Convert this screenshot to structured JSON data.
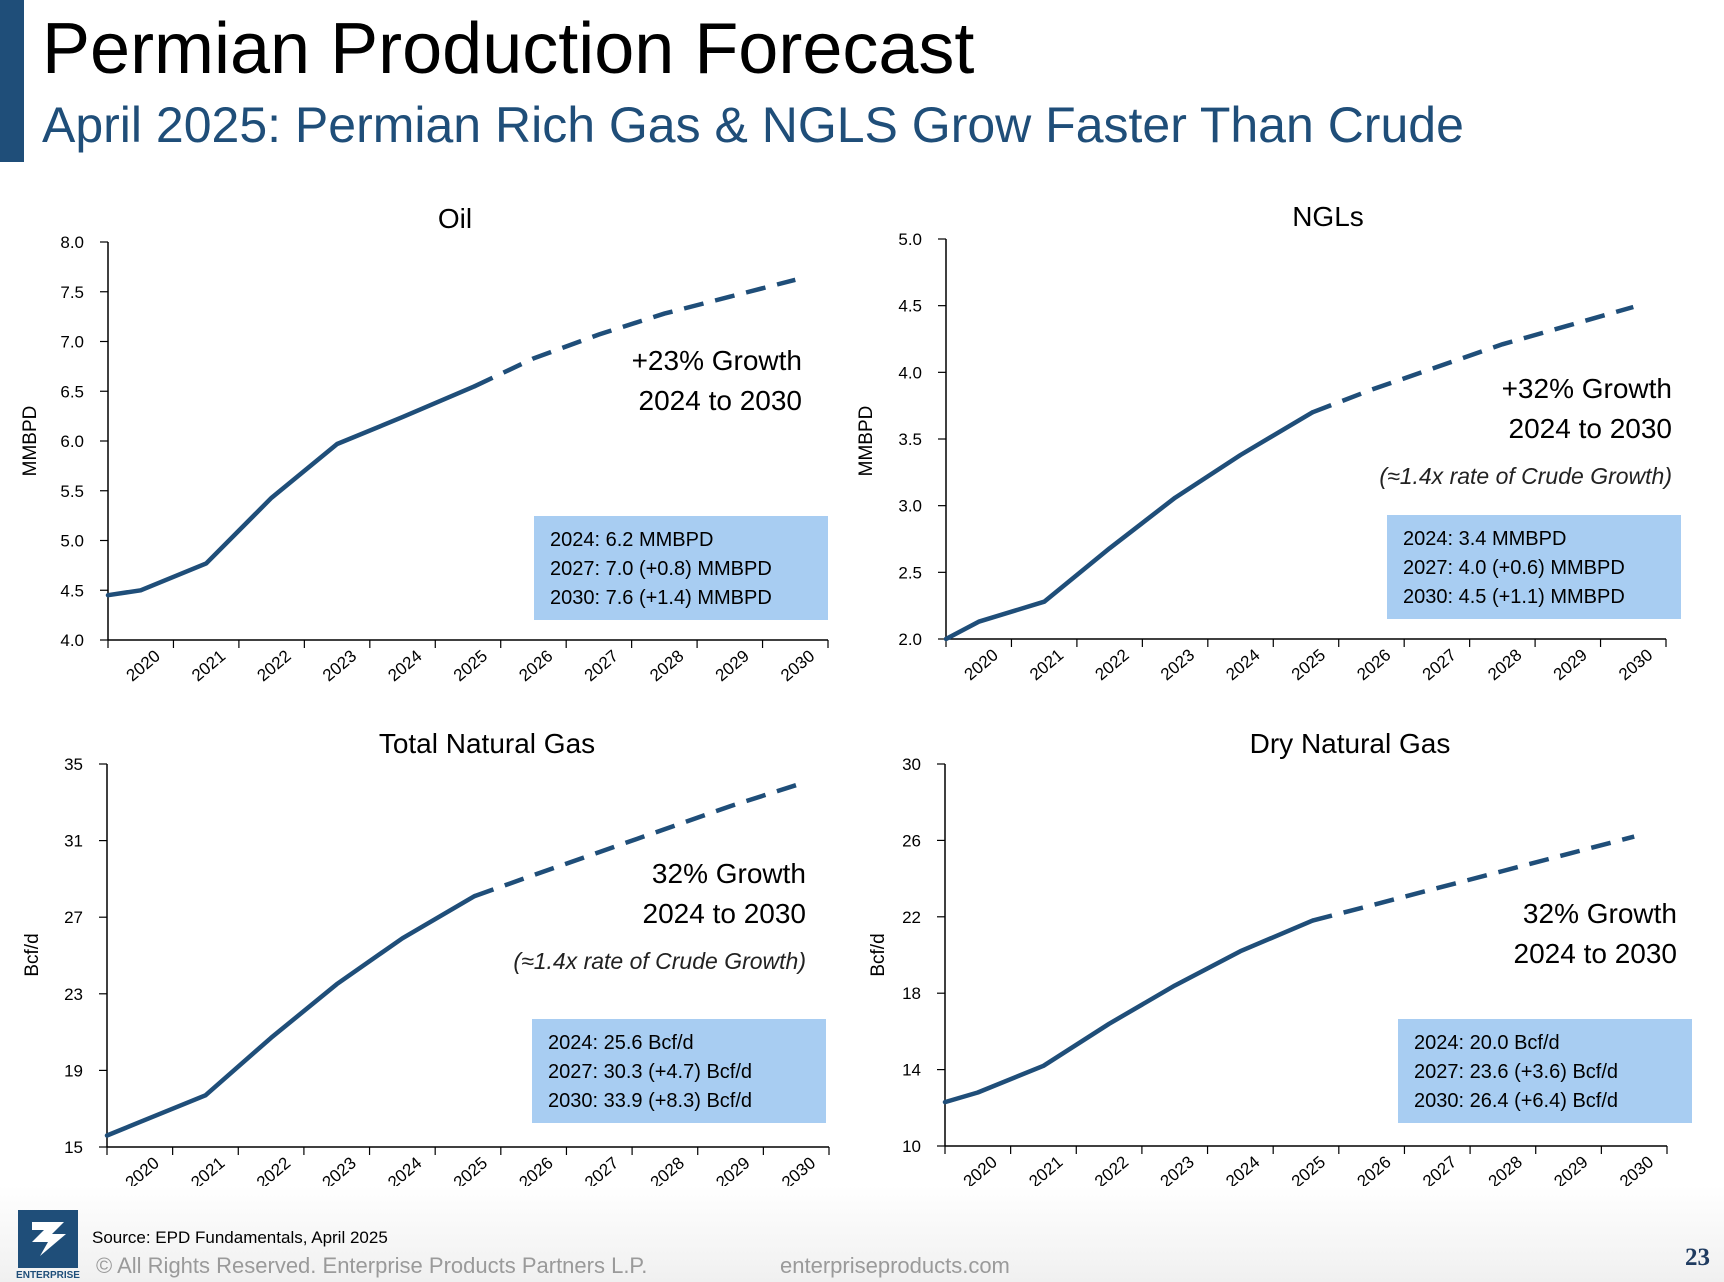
{
  "header": {
    "title": "Permian Production Forecast",
    "subtitle": "April 2025: Permian Rich Gas & NGLS Grow Faster Than Crude"
  },
  "colors": {
    "accent": "#1f4e79",
    "line": "#1f4e79",
    "box": "#a8cdf2"
  },
  "chart_data": [
    {
      "type": "line",
      "title": "Oil",
      "ylabel": "MMBPD",
      "ylim": [
        4.0,
        8.0
      ],
      "yticks": [
        "8.0",
        "7.5",
        "7.0",
        "6.5",
        "6.0",
        "5.5",
        "5.0",
        "4.5",
        "4.0"
      ],
      "categories": [
        "2020",
        "2021",
        "2022",
        "2023",
        "2024",
        "2025",
        "2026",
        "2027",
        "2028",
        "2029",
        "2030"
      ],
      "series": [
        {
          "style": "solid-actual-dashed-forecast",
          "forecast_start_x": 5.6,
          "points": [
            [
              0,
              4.45
            ],
            [
              0.5,
              4.5
            ],
            [
              1.5,
              4.77
            ],
            [
              2.5,
              5.43
            ],
            [
              3.5,
              5.97
            ],
            [
              4.5,
              6.24
            ],
            [
              5.6,
              6.55
            ],
            [
              6.5,
              6.83
            ],
            [
              7.5,
              7.07
            ],
            [
              8.5,
              7.28
            ],
            [
              9.5,
              7.45
            ],
            [
              10.5,
              7.62
            ]
          ]
        }
      ],
      "annotation": {
        "lines": [
          "+23% Growth",
          "2024 to 2030"
        ]
      },
      "box": {
        "lines": [
          "2024: 6.2 MMBPD",
          "2027: 7.0 (+0.8) MMBPD",
          "2030: 7.6 (+1.4) MMBPD"
        ]
      }
    },
    {
      "type": "line",
      "title": "NGLs",
      "ylabel": "MMBPD",
      "ylim": [
        2.0,
        5.0
      ],
      "yticks": [
        "5.0",
        "4.5",
        "4.0",
        "3.5",
        "3.0",
        "2.5",
        "2.0"
      ],
      "categories": [
        "2020",
        "2021",
        "2022",
        "2023",
        "2024",
        "2025",
        "2026",
        "2027",
        "2028",
        "2029",
        "2030"
      ],
      "series": [
        {
          "style": "solid-actual-dashed-forecast",
          "forecast_start_x": 5.6,
          "points": [
            [
              0,
              2.0
            ],
            [
              0.5,
              2.13
            ],
            [
              1.5,
              2.28
            ],
            [
              2.5,
              2.68
            ],
            [
              3.5,
              3.06
            ],
            [
              4.5,
              3.38
            ],
            [
              5.6,
              3.7
            ],
            [
              6.5,
              3.87
            ],
            [
              7.5,
              4.04
            ],
            [
              8.5,
              4.21
            ],
            [
              9.5,
              4.35
            ],
            [
              10.5,
              4.49
            ]
          ]
        }
      ],
      "annotation": {
        "lines": [
          "+32% Growth",
          "2024 to 2030"
        ],
        "note": "(≈1.4x rate of Crude Growth)"
      },
      "box": {
        "lines": [
          "2024: 3.4 MMBPD",
          "2027: 4.0 (+0.6) MMBPD",
          "2030: 4.5 (+1.1) MMBPD"
        ]
      }
    },
    {
      "type": "line",
      "title": "Total Natural Gas",
      "ylabel": "Bcf/d",
      "ylim": [
        15,
        35
      ],
      "yticks": [
        "35",
        "31",
        "27",
        "23",
        "19",
        "15"
      ],
      "categories": [
        "2020",
        "2021",
        "2022",
        "2023",
        "2024",
        "2025",
        "2026",
        "2027",
        "2028",
        "2029",
        "2030"
      ],
      "series": [
        {
          "style": "solid-actual-dashed-forecast",
          "forecast_start_x": 5.6,
          "points": [
            [
              0,
              15.6
            ],
            [
              0.5,
              16.3
            ],
            [
              1.5,
              17.7
            ],
            [
              2.5,
              20.7
            ],
            [
              3.5,
              23.5
            ],
            [
              4.5,
              25.9
            ],
            [
              5.6,
              28.1
            ],
            [
              6.5,
              29.2
            ],
            [
              7.5,
              30.4
            ],
            [
              8.5,
              31.6
            ],
            [
              9.5,
              32.8
            ],
            [
              10.5,
              33.9
            ]
          ]
        }
      ],
      "annotation": {
        "lines": [
          "32% Growth",
          "2024 to 2030"
        ],
        "note": "(≈1.4x rate of Crude Growth)"
      },
      "box": {
        "lines": [
          "2024: 25.6 Bcf/d",
          "2027: 30.3 (+4.7) Bcf/d",
          "2030: 33.9 (+8.3) Bcf/d"
        ]
      }
    },
    {
      "type": "line",
      "title": "Dry Natural Gas",
      "ylabel": "Bcf/d",
      "ylim": [
        10,
        30
      ],
      "yticks": [
        "30",
        "26",
        "22",
        "18",
        "14",
        "10"
      ],
      "categories": [
        "2020",
        "2021",
        "2022",
        "2023",
        "2024",
        "2025",
        "2026",
        "2027",
        "2028",
        "2029",
        "2030"
      ],
      "series": [
        {
          "style": "solid-actual-dashed-forecast",
          "forecast_start_x": 5.6,
          "points": [
            [
              0,
              12.3
            ],
            [
              0.5,
              12.8
            ],
            [
              1.5,
              14.2
            ],
            [
              2.5,
              16.4
            ],
            [
              3.5,
              18.4
            ],
            [
              4.5,
              20.2
            ],
            [
              5.6,
              21.8
            ],
            [
              6.5,
              22.6
            ],
            [
              7.5,
              23.5
            ],
            [
              8.5,
              24.4
            ],
            [
              9.5,
              25.3
            ],
            [
              10.5,
              26.2
            ]
          ]
        }
      ],
      "annotation": {
        "lines": [
          "32% Growth",
          "2024 to 2030"
        ]
      },
      "box": {
        "lines": [
          "2024: 20.0 Bcf/d",
          "2027: 23.6 (+3.6) Bcf/d",
          "2030: 26.4 (+6.4) Bcf/d"
        ]
      }
    }
  ],
  "footer": {
    "source": "Source:  EPD Fundamentals, April 2025",
    "copyright": "© All Rights Reserved. Enterprise Products Partners L.P.",
    "website": "enterpriseproducts.com",
    "page_number": "23",
    "logo_text": "ENTERPRISE"
  }
}
